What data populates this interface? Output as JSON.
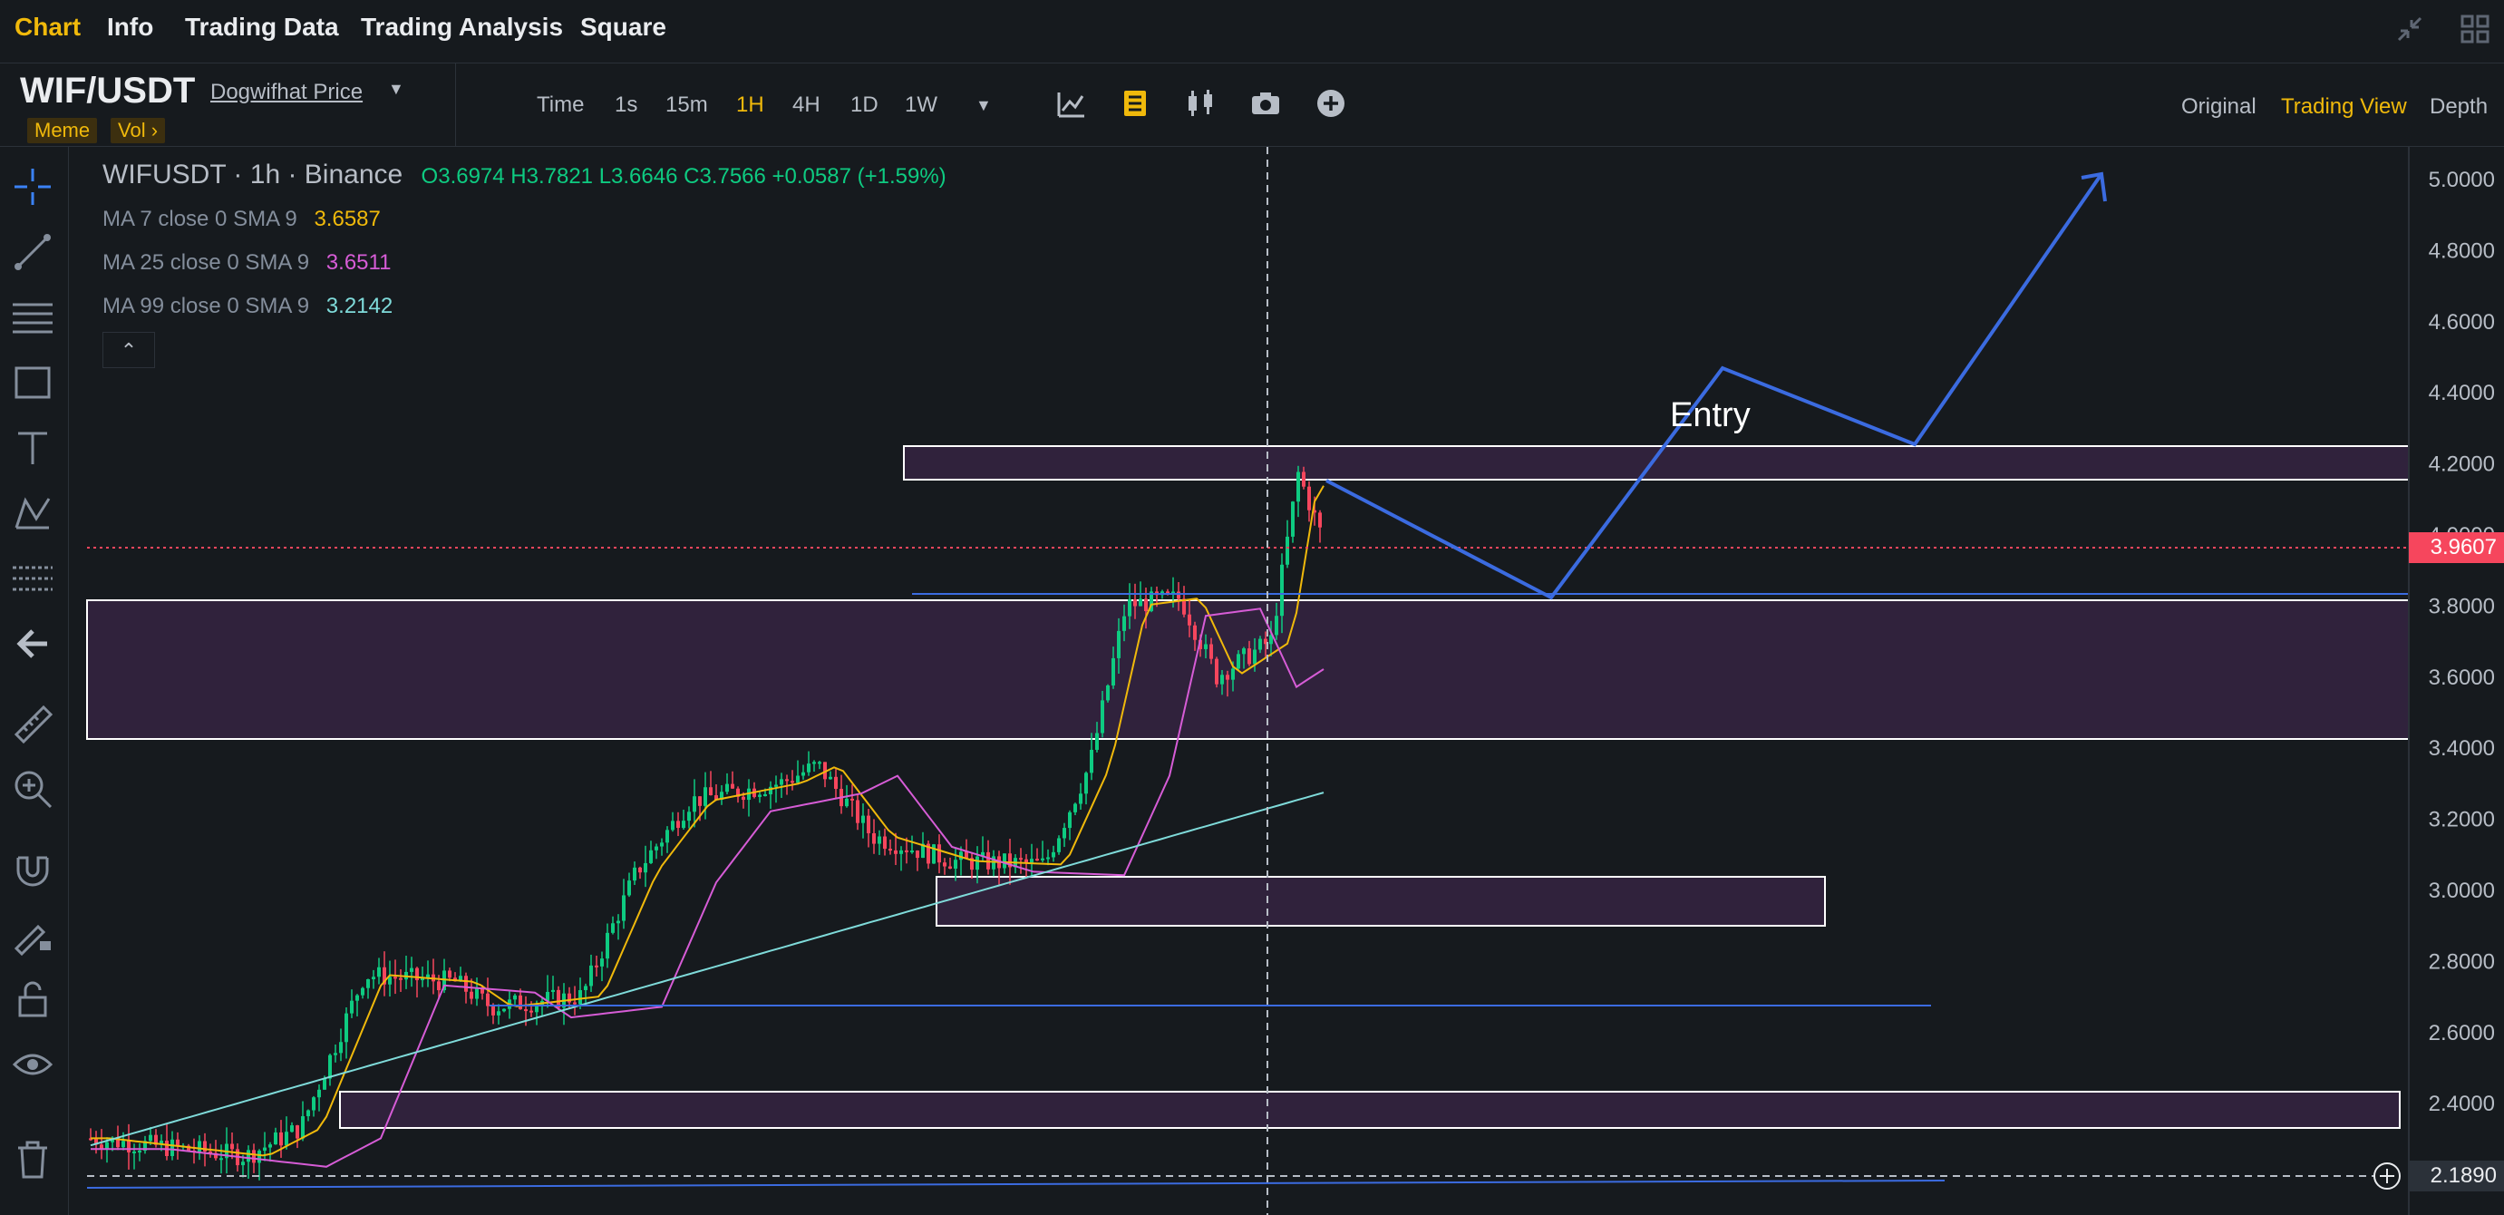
{
  "nav": {
    "tabs": [
      {
        "label": "Chart",
        "active": true
      },
      {
        "label": "Info",
        "active": false
      },
      {
        "label": "Trading Data",
        "active": false
      },
      {
        "label": "Trading Analysis",
        "active": false
      },
      {
        "label": "Square",
        "active": false
      }
    ]
  },
  "symbol": {
    "pair": "WIF/USDT",
    "subtitle": "Dogwifhat Price",
    "tags": [
      "Meme",
      "Vol ›"
    ]
  },
  "toolbar": {
    "time_label": "Time",
    "intervals": [
      {
        "label": "1s",
        "active": false
      },
      {
        "label": "15m",
        "active": false
      },
      {
        "label": "1H",
        "active": true
      },
      {
        "label": "4H",
        "active": false
      },
      {
        "label": "1D",
        "active": false
      },
      {
        "label": "1W",
        "active": false
      }
    ],
    "views": [
      {
        "label": "Original",
        "active": false
      },
      {
        "label": "Trading View",
        "active": true
      },
      {
        "label": "Depth",
        "active": false
      }
    ]
  },
  "legend": {
    "title": "WIFUSDT · 1h · Binance",
    "ohlc": "O3.6974 H3.7821 L3.6646 C3.7566 +0.0587 (+1.59%)",
    "ma": [
      {
        "label": "MA 7 close 0 SMA 9",
        "value": "3.6587",
        "color": "#f0b90b"
      },
      {
        "label": "MA 25 close 0 SMA 9",
        "value": "3.6511",
        "color": "#d65cd6"
      },
      {
        "label": "MA 99 close 0 SMA 9",
        "value": "3.2142",
        "color": "#7fdbda"
      }
    ],
    "collapse_glyph": "⌃"
  },
  "price_axis": {
    "ticks": [
      "5.0000",
      "4.8000",
      "4.6000",
      "4.4000",
      "4.2000",
      "4.0000",
      "3.8000",
      "3.6000",
      "3.4000",
      "3.2000",
      "3.0000",
      "2.8000",
      "2.6000",
      "2.4000"
    ],
    "current_price": "3.9607",
    "crosshair_price": "2.1890"
  },
  "annotations": {
    "entry_label": "Entry"
  },
  "colors": {
    "up": "#0ecb81",
    "down": "#f6465d",
    "accent": "#f0b90b",
    "zone": "#3a2547",
    "trend": "#3b6be0"
  }
}
